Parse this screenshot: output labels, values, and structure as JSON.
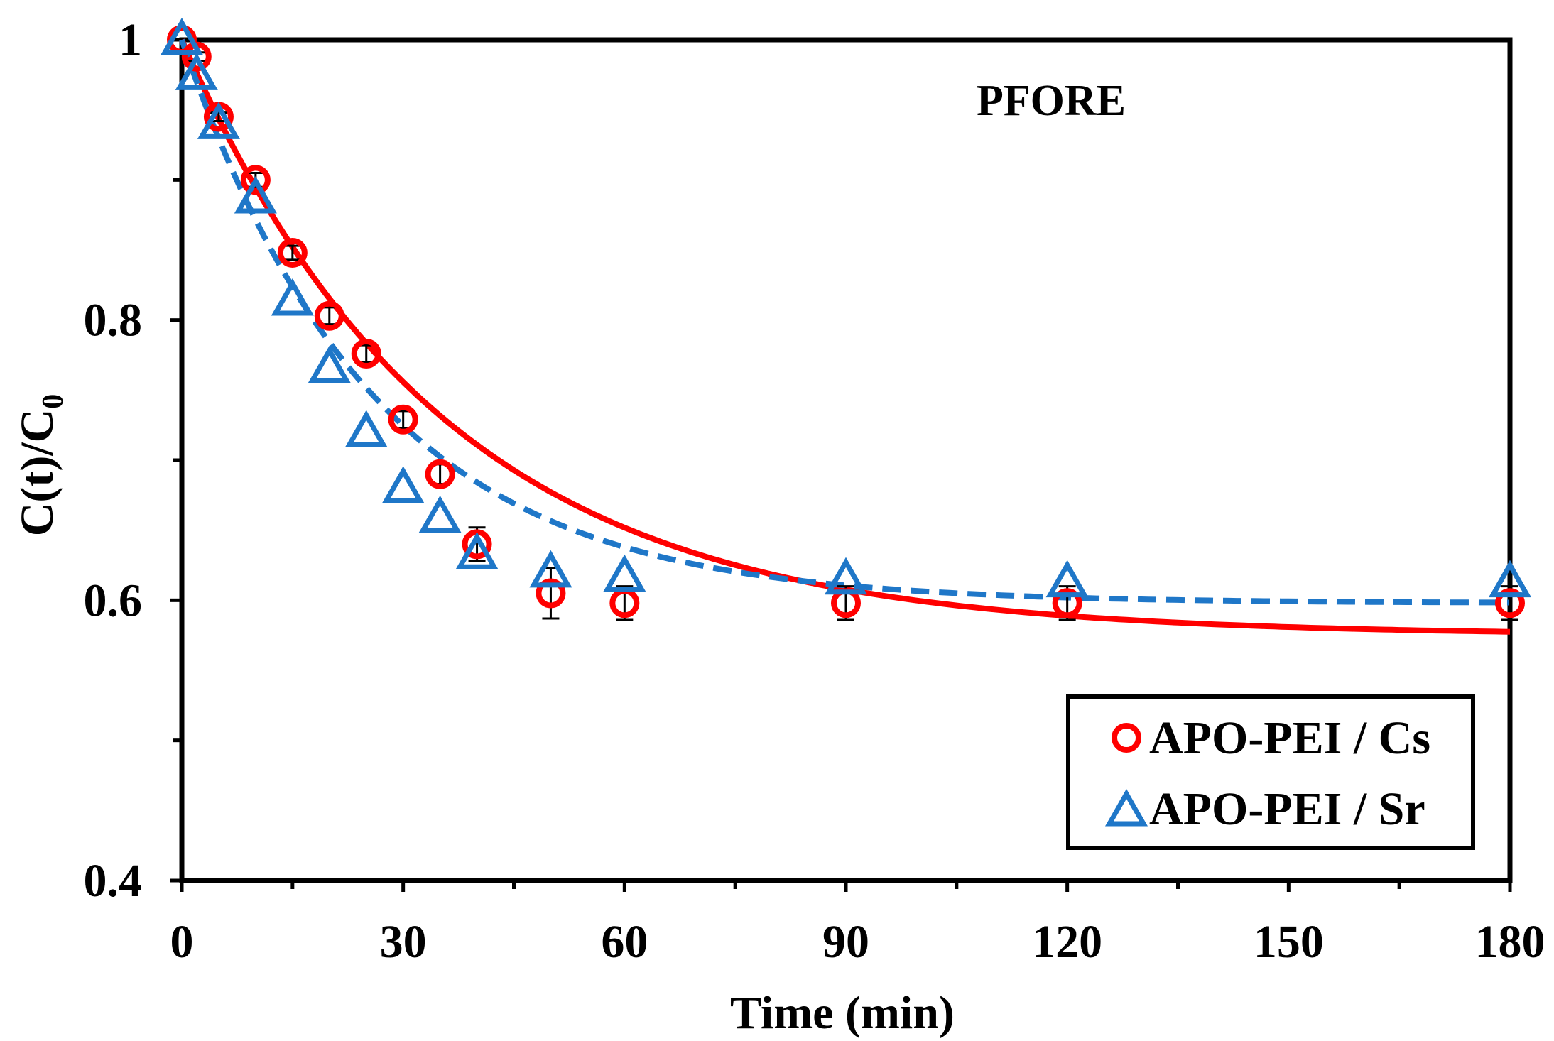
{
  "chart_data": {
    "type": "scatter",
    "title": "",
    "annotation": "PFORE",
    "xlabel": "Time (min)",
    "ylabel": "C(t)/C",
    "ylabel_subscript": "0",
    "xlim": [
      0,
      180
    ],
    "ylim": [
      0.4,
      1.0
    ],
    "xticks": [
      0,
      30,
      60,
      90,
      120,
      150,
      180
    ],
    "xtick_labels": [
      "0",
      "30",
      "60",
      "90",
      "120",
      "150",
      "180"
    ],
    "yticks": [
      0.4,
      0.6,
      0.8,
      1.0
    ],
    "ytick_labels": [
      "0.4",
      "0.6",
      "0.8",
      "1"
    ],
    "x_minor_step": 15,
    "y_minor_step": 0.1,
    "grid": false,
    "legend_position": "bottom-right",
    "series": [
      {
        "name": "APO-PEI / Cs",
        "marker": "circle",
        "color": "#ff0000",
        "x": [
          0,
          2,
          5,
          10,
          15,
          20,
          25,
          30,
          35,
          40,
          50,
          60,
          90,
          120,
          180
        ],
        "y": [
          1.0,
          0.988,
          0.945,
          0.9,
          0.848,
          0.803,
          0.776,
          0.729,
          0.69,
          0.64,
          0.605,
          0.598,
          0.598,
          0.598,
          0.598
        ],
        "error": [
          0,
          0.003,
          0.003,
          0.005,
          0.005,
          0.006,
          0.006,
          0.006,
          0.007,
          0.012,
          0.018,
          0.012,
          0.012,
          0.012,
          0.012
        ]
      },
      {
        "name": "APO-PEI / Sr",
        "marker": "triangle",
        "color": "#1f77c8",
        "x": [
          0,
          2,
          5,
          10,
          15,
          20,
          25,
          30,
          35,
          40,
          50,
          60,
          90,
          120,
          180
        ],
        "y": [
          1.0,
          0.975,
          0.94,
          0.887,
          0.814,
          0.766,
          0.72,
          0.68,
          0.659,
          0.633,
          0.62,
          0.617,
          0.615,
          0.613,
          0.613
        ],
        "error": [
          0,
          0,
          0,
          0,
          0,
          0,
          0,
          0,
          0,
          0,
          0,
          0,
          0,
          0,
          0
        ]
      }
    ],
    "fits": [
      {
        "name": "APO-PEI / Cs fit",
        "style": "solid",
        "color": "#ff0000",
        "model": "exponential",
        "y_inf": 0.575,
        "y0": 1.0,
        "k": 0.0285
      },
      {
        "name": "APO-PEI / Sr fit",
        "style": "dashed",
        "color": "#1f77c8",
        "model": "exponential",
        "y_inf": 0.598,
        "y0": 1.0,
        "k": 0.0385
      }
    ]
  }
}
